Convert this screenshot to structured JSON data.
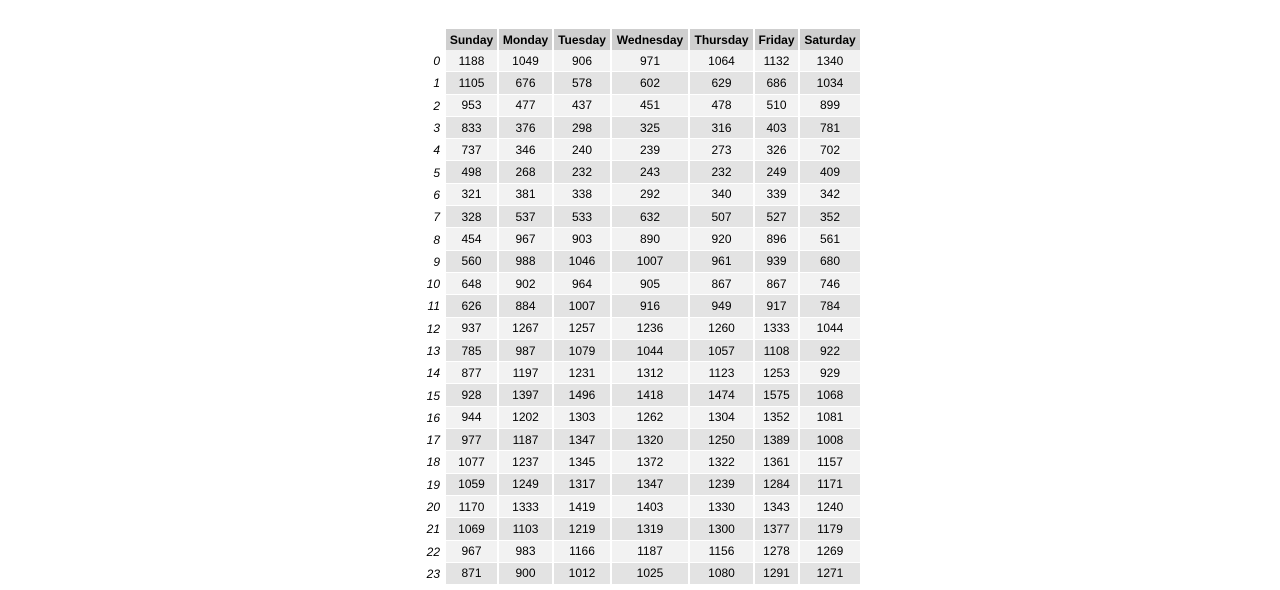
{
  "columns": [
    "Sunday",
    "Monday",
    "Tuesday",
    "Wednesday",
    "Thursday",
    "Friday",
    "Saturday"
  ],
  "rows": [
    {
      "hour": "0",
      "values": [
        "1188",
        "1049",
        "906",
        "971",
        "1064",
        "1132",
        "1340"
      ]
    },
    {
      "hour": "1",
      "values": [
        "1105",
        "676",
        "578",
        "602",
        "629",
        "686",
        "1034"
      ]
    },
    {
      "hour": "2",
      "values": [
        "953",
        "477",
        "437",
        "451",
        "478",
        "510",
        "899"
      ]
    },
    {
      "hour": "3",
      "values": [
        "833",
        "376",
        "298",
        "325",
        "316",
        "403",
        "781"
      ]
    },
    {
      "hour": "4",
      "values": [
        "737",
        "346",
        "240",
        "239",
        "273",
        "326",
        "702"
      ]
    },
    {
      "hour": "5",
      "values": [
        "498",
        "268",
        "232",
        "243",
        "232",
        "249",
        "409"
      ]
    },
    {
      "hour": "6",
      "values": [
        "321",
        "381",
        "338",
        "292",
        "340",
        "339",
        "342"
      ]
    },
    {
      "hour": "7",
      "values": [
        "328",
        "537",
        "533",
        "632",
        "507",
        "527",
        "352"
      ]
    },
    {
      "hour": "8",
      "values": [
        "454",
        "967",
        "903",
        "890",
        "920",
        "896",
        "561"
      ]
    },
    {
      "hour": "9",
      "values": [
        "560",
        "988",
        "1046",
        "1007",
        "961",
        "939",
        "680"
      ]
    },
    {
      "hour": "10",
      "values": [
        "648",
        "902",
        "964",
        "905",
        "867",
        "867",
        "746"
      ]
    },
    {
      "hour": "11",
      "values": [
        "626",
        "884",
        "1007",
        "916",
        "949",
        "917",
        "784"
      ]
    },
    {
      "hour": "12",
      "values": [
        "937",
        "1267",
        "1257",
        "1236",
        "1260",
        "1333",
        "1044"
      ]
    },
    {
      "hour": "13",
      "values": [
        "785",
        "987",
        "1079",
        "1044",
        "1057",
        "1108",
        "922"
      ]
    },
    {
      "hour": "14",
      "values": [
        "877",
        "1197",
        "1231",
        "1312",
        "1123",
        "1253",
        "929"
      ]
    },
    {
      "hour": "15",
      "values": [
        "928",
        "1397",
        "1496",
        "1418",
        "1474",
        "1575",
        "1068"
      ]
    },
    {
      "hour": "16",
      "values": [
        "944",
        "1202",
        "1303",
        "1262",
        "1304",
        "1352",
        "1081"
      ]
    },
    {
      "hour": "17",
      "values": [
        "977",
        "1187",
        "1347",
        "1320",
        "1250",
        "1389",
        "1008"
      ]
    },
    {
      "hour": "18",
      "values": [
        "1077",
        "1237",
        "1345",
        "1372",
        "1322",
        "1361",
        "1157"
      ]
    },
    {
      "hour": "19",
      "values": [
        "1059",
        "1249",
        "1317",
        "1347",
        "1239",
        "1284",
        "1171"
      ]
    },
    {
      "hour": "20",
      "values": [
        "1170",
        "1333",
        "1419",
        "1403",
        "1330",
        "1343",
        "1240"
      ]
    },
    {
      "hour": "21",
      "values": [
        "1069",
        "1103",
        "1219",
        "1319",
        "1300",
        "1377",
        "1179"
      ]
    },
    {
      "hour": "22",
      "values": [
        "967",
        "983",
        "1166",
        "1187",
        "1156",
        "1278",
        "1269"
      ]
    },
    {
      "hour": "23",
      "values": [
        "871",
        "900",
        "1012",
        "1025",
        "1080",
        "1291",
        "1271"
      ]
    }
  ]
}
